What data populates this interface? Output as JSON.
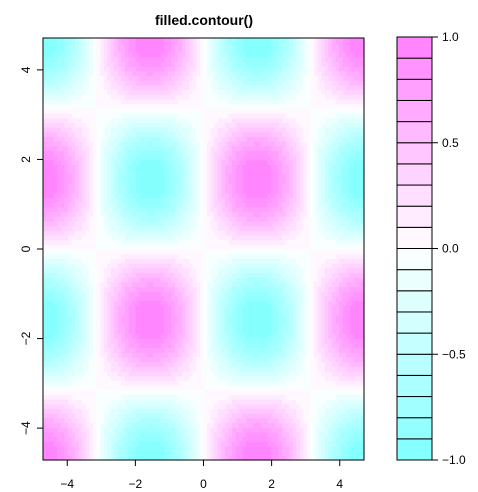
{
  "chart_data": {
    "type": "heatmap",
    "title": "filled.contour()",
    "function": "sin(x) * sin(y)",
    "x_ticks": [
      "−4",
      "−2",
      "0",
      "2",
      "4"
    ],
    "x_tick_values": [
      -4,
      -2,
      0,
      2,
      4
    ],
    "y_ticks": [
      "−4",
      "−2",
      "0",
      "2",
      "4"
    ],
    "y_tick_values": [
      -4,
      -2,
      0,
      2,
      4
    ],
    "xlim": [
      -4.712,
      4.712
    ],
    "ylim": [
      -4.712,
      4.712
    ],
    "zlim": [
      -1,
      1
    ],
    "levels": [
      -1.0,
      -0.9,
      -0.8,
      -0.7,
      -0.6,
      -0.5,
      -0.4,
      -0.3,
      -0.2,
      -0.1,
      0.0,
      0.1,
      0.2,
      0.3,
      0.4,
      0.5,
      0.6,
      0.7,
      0.8,
      0.9,
      1.0
    ],
    "colorbar_ticks": [
      "1.0",
      "0.5",
      "0.0",
      "−0.5",
      "−1.0"
    ],
    "colorbar_tick_values": [
      1.0,
      0.5,
      0.0,
      -0.5,
      -1.0
    ],
    "colors": {
      "low": "#80ffff",
      "mid": "#ffffff",
      "high": "#ff80ff"
    },
    "grid": false,
    "legend": "colorbar-right"
  }
}
